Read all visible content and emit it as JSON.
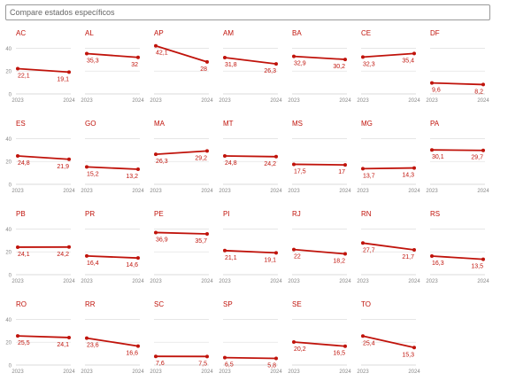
{
  "search": {
    "placeholder": "Compare estados específicos"
  },
  "colors": {
    "line": "#c0130b",
    "text": "#c0130b",
    "axis": "#888888",
    "grid": "#e3e3e3"
  },
  "chart_data": {
    "type": "line",
    "x": [
      "2023",
      "2024"
    ],
    "ylim": [
      0,
      45
    ],
    "yticks": [
      0,
      20,
      40
    ],
    "panels": [
      {
        "state": "AC",
        "values": [
          22.1,
          19.1
        ],
        "labels": [
          "22,1",
          "19,1"
        ]
      },
      {
        "state": "AL",
        "values": [
          35.3,
          32
        ],
        "labels": [
          "35,3",
          "32"
        ]
      },
      {
        "state": "AP",
        "values": [
          42.1,
          28
        ],
        "labels": [
          "42,1",
          "28"
        ]
      },
      {
        "state": "AM",
        "values": [
          31.8,
          26.3
        ],
        "labels": [
          "31,8",
          "26,3"
        ]
      },
      {
        "state": "BA",
        "values": [
          32.9,
          30.2
        ],
        "labels": [
          "32,9",
          "30,2"
        ]
      },
      {
        "state": "CE",
        "values": [
          32.3,
          35.4
        ],
        "labels": [
          "32,3",
          "35,4"
        ]
      },
      {
        "state": "DF",
        "values": [
          9.6,
          8.2
        ],
        "labels": [
          "9,6",
          "8,2"
        ]
      },
      {
        "state": "ES",
        "values": [
          24.8,
          21.9
        ],
        "labels": [
          "24,8",
          "21,9"
        ]
      },
      {
        "state": "GO",
        "values": [
          15.2,
          13.2
        ],
        "labels": [
          "15,2",
          "13,2"
        ]
      },
      {
        "state": "MA",
        "values": [
          26.3,
          29.2
        ],
        "labels": [
          "26,3",
          "29,2"
        ]
      },
      {
        "state": "MT",
        "values": [
          24.8,
          24.2
        ],
        "labels": [
          "24,8",
          "24,2"
        ]
      },
      {
        "state": "MS",
        "values": [
          17.5,
          17
        ],
        "labels": [
          "17,5",
          "17"
        ]
      },
      {
        "state": "MG",
        "values": [
          13.7,
          14.3
        ],
        "labels": [
          "13,7",
          "14,3"
        ]
      },
      {
        "state": "PA",
        "values": [
          30.1,
          29.7
        ],
        "labels": [
          "30,1",
          "29,7"
        ]
      },
      {
        "state": "PB",
        "values": [
          24.1,
          24.2
        ],
        "labels": [
          "24,1",
          "24,2"
        ]
      },
      {
        "state": "PR",
        "values": [
          16.4,
          14.6
        ],
        "labels": [
          "16,4",
          "14,6"
        ]
      },
      {
        "state": "PE",
        "values": [
          36.9,
          35.7
        ],
        "labels": [
          "36,9",
          "35,7"
        ]
      },
      {
        "state": "PI",
        "values": [
          21.1,
          19.1
        ],
        "labels": [
          "21,1",
          "19,1"
        ]
      },
      {
        "state": "RJ",
        "values": [
          22,
          18.2
        ],
        "labels": [
          "22",
          "18,2"
        ]
      },
      {
        "state": "RN",
        "values": [
          27.7,
          21.7
        ],
        "labels": [
          "27,7",
          "21,7"
        ]
      },
      {
        "state": "RS",
        "values": [
          16.3,
          13.5
        ],
        "labels": [
          "16,3",
          "13,5"
        ]
      },
      {
        "state": "RO",
        "values": [
          25.5,
          24.1
        ],
        "labels": [
          "25,5",
          "24,1"
        ]
      },
      {
        "state": "RR",
        "values": [
          23.6,
          16.6
        ],
        "labels": [
          "23,6",
          "16,6"
        ]
      },
      {
        "state": "SC",
        "values": [
          7.6,
          7.5
        ],
        "labels": [
          "7,6",
          "7,5"
        ]
      },
      {
        "state": "SP",
        "values": [
          6.5,
          5.8
        ],
        "labels": [
          "6,5",
          "5,8"
        ]
      },
      {
        "state": "SE",
        "values": [
          20.2,
          16.5
        ],
        "labels": [
          "20,2",
          "16,5"
        ]
      },
      {
        "state": "TO",
        "values": [
          25.4,
          15.3
        ],
        "labels": [
          "25,4",
          "15,3"
        ]
      }
    ]
  }
}
